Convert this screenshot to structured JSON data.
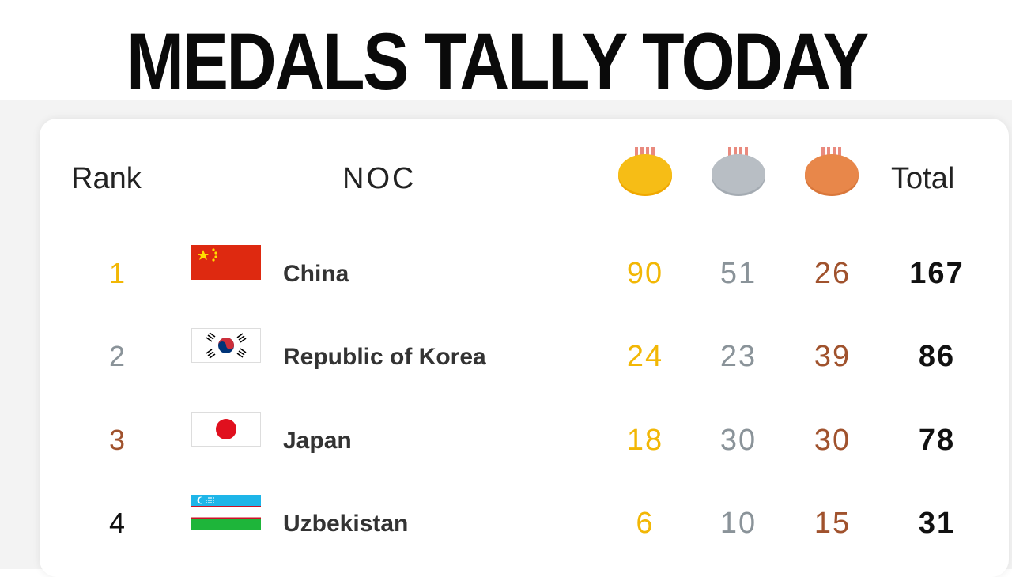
{
  "headline": "MEDALS TALLY TODAY",
  "table": {
    "headers": {
      "rank": "Rank",
      "noc": "NOC",
      "total": "Total"
    },
    "medal_icons": [
      "gold-medal-icon",
      "silver-medal-icon",
      "bronze-medal-icon"
    ],
    "colors": {
      "gold": "#f6bd16",
      "silver": "#b8bec4",
      "bronze": "#e8874a",
      "rank1": "#f2b705",
      "rank2": "#8a9399",
      "rank3": "#a0522d",
      "rank4": "#111111"
    },
    "rows": [
      {
        "rank": "1",
        "country": "China",
        "flag": "china-flag-icon",
        "gold": "90",
        "silver": "51",
        "bronze": "26",
        "total": "167"
      },
      {
        "rank": "2",
        "country": "Republic of Korea",
        "flag": "korea-flag-icon",
        "gold": "24",
        "silver": "23",
        "bronze": "39",
        "total": "86"
      },
      {
        "rank": "3",
        "country": "Japan",
        "flag": "japan-flag-icon",
        "gold": "18",
        "silver": "30",
        "bronze": "30",
        "total": "78"
      },
      {
        "rank": "4",
        "country": "Uzbekistan",
        "flag": "uzbekistan-flag-icon",
        "gold": "6",
        "silver": "10",
        "bronze": "15",
        "total": "31"
      }
    ]
  }
}
